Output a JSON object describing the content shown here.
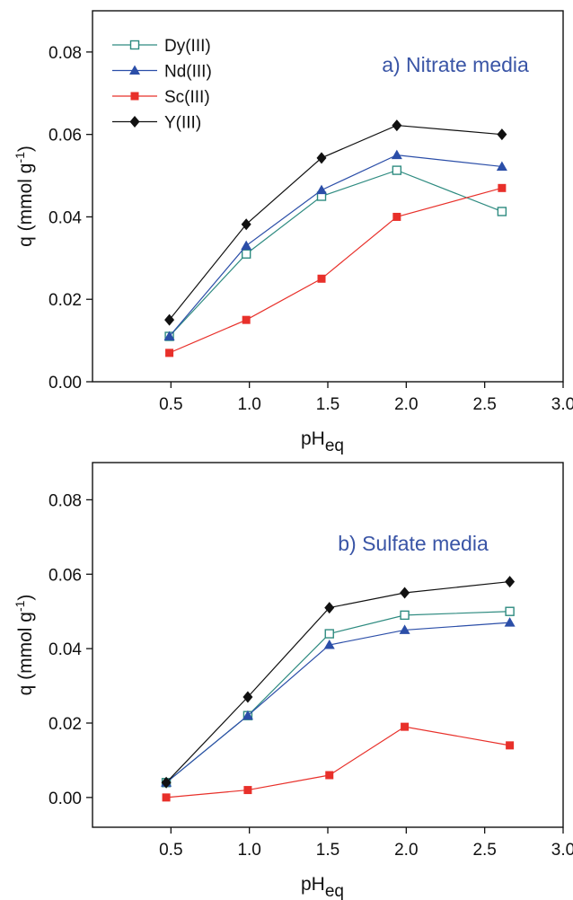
{
  "colors": {
    "Dy(III)": "#2e8b80",
    "Nd(III)": "#2b4ea8",
    "Sc(III)": "#e8302a",
    "Y(III)": "#111111",
    "title": "#3a55a6"
  },
  "markers": {
    "Dy(III)": "open-square",
    "Nd(III)": "filled-triangle",
    "Sc(III)": "filled-square",
    "Y(III)": "filled-diamond"
  },
  "chart_data": [
    {
      "type": "line",
      "title": "a) Nitrate media",
      "xlabel": "pH",
      "xlabel_sub": "eq",
      "ylabel": "q (mmol g",
      "ylabel_sup": "-1",
      "ylabel_end": ")",
      "xlim": [
        0,
        3.0
      ],
      "ylim": [
        0,
        0.09
      ],
      "xticks": [
        0.5,
        1.0,
        1.5,
        2.0,
        2.5,
        3.0
      ],
      "xtick_labels": [
        "0.5",
        "1.0",
        "1.5",
        "2.0",
        "2.5",
        "3.0"
      ],
      "yticks": [
        0,
        0.02,
        0.04,
        0.06,
        0.08
      ],
      "ytick_labels": [
        "0.00",
        "0.02",
        "0.04",
        "0.06",
        "0.08"
      ],
      "legend": "top-left",
      "grid": false,
      "series": [
        {
          "name": "Dy(III)",
          "x": [
            0.49,
            0.98,
            1.46,
            1.94,
            2.61
          ],
          "y": [
            0.011,
            0.031,
            0.045,
            0.0513,
            0.0413
          ]
        },
        {
          "name": "Nd(III)",
          "x": [
            0.49,
            0.98,
            1.46,
            1.94,
            2.61
          ],
          "y": [
            0.011,
            0.033,
            0.0465,
            0.055,
            0.0522
          ]
        },
        {
          "name": "Sc(III)",
          "x": [
            0.49,
            0.98,
            1.46,
            1.94,
            2.61
          ],
          "y": [
            0.007,
            0.015,
            0.025,
            0.04,
            0.047
          ]
        },
        {
          "name": "Y(III)",
          "x": [
            0.49,
            0.98,
            1.46,
            1.94,
            2.61
          ],
          "y": [
            0.015,
            0.0382,
            0.0543,
            0.0622,
            0.06
          ]
        }
      ]
    },
    {
      "type": "line",
      "title": "b) Sulfate media",
      "xlabel": "pH",
      "xlabel_sub": "eq",
      "ylabel": "q (mmol g",
      "ylabel_sup": "-1",
      "ylabel_end": ")",
      "xlim": [
        0,
        3.0
      ],
      "ylim": [
        -0.008,
        0.09
      ],
      "xticks": [
        0.5,
        1.0,
        1.5,
        2.0,
        2.5,
        3.0
      ],
      "xtick_labels": [
        "0.5",
        "1.0",
        "1.5",
        "2.0",
        "2.5",
        "3.0"
      ],
      "yticks": [
        0,
        0.02,
        0.04,
        0.06,
        0.08
      ],
      "ytick_labels": [
        "0.00",
        "0.02",
        "0.04",
        "0.06",
        "0.08"
      ],
      "legend": "none",
      "grid": false,
      "series": [
        {
          "name": "Dy(III)",
          "x": [
            0.47,
            0.99,
            1.51,
            1.99,
            2.66
          ],
          "y": [
            0.004,
            0.022,
            0.044,
            0.049,
            0.05
          ]
        },
        {
          "name": "Nd(III)",
          "x": [
            0.47,
            0.99,
            1.51,
            1.99,
            2.66
          ],
          "y": [
            0.004,
            0.022,
            0.041,
            0.045,
            0.047
          ]
        },
        {
          "name": "Sc(III)",
          "x": [
            0.47,
            0.99,
            1.51,
            1.99,
            2.66
          ],
          "y": [
            0.0,
            0.002,
            0.006,
            0.019,
            0.014
          ]
        },
        {
          "name": "Y(III)",
          "x": [
            0.47,
            0.99,
            1.51,
            1.99,
            2.66
          ],
          "y": [
            0.004,
            0.027,
            0.051,
            0.055,
            0.058
          ]
        }
      ]
    }
  ]
}
